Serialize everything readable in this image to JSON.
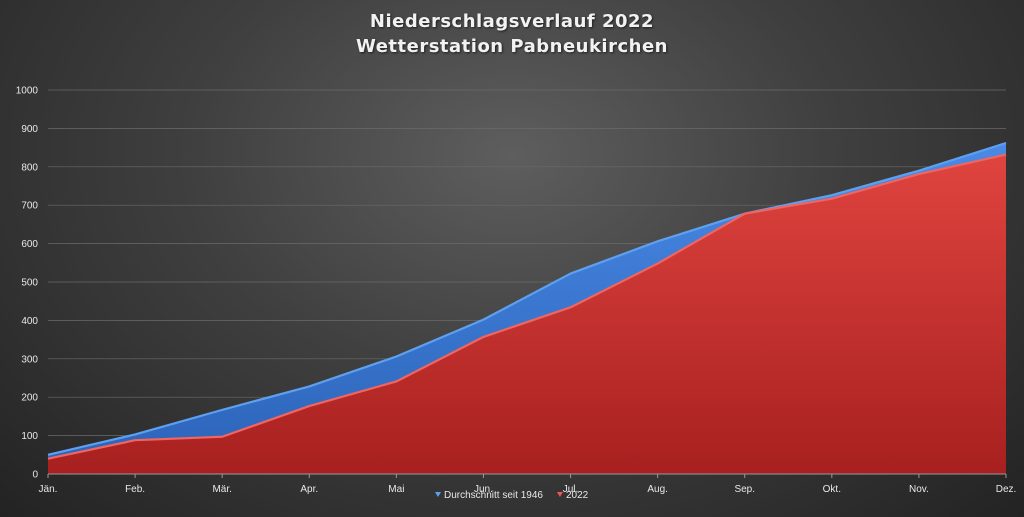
{
  "chart_data": {
    "type": "area",
    "title": "Niederschlagsverlauf 2022",
    "subtitle": "Wetterstation Pabneukirchen",
    "categories": [
      "Jän.",
      "Feb.",
      "Mär.",
      "Apr.",
      "Mai",
      "Jun.",
      "Jul.",
      "Aug.",
      "Sep.",
      "Okt.",
      "Nov.",
      "Dez."
    ],
    "series": [
      {
        "name": "Durchschnitt seit 1946",
        "color": "#3f7fd8",
        "values": [
          50,
          103,
          167,
          228,
          306,
          402,
          522,
          606,
          678,
          726,
          790,
          862
        ]
      },
      {
        "name": "2022",
        "color": "#d93b37",
        "values": [
          40,
          88,
          97,
          177,
          241,
          357,
          434,
          548,
          678,
          717,
          781,
          832
        ]
      }
    ],
    "ylim": [
      0,
      1000
    ],
    "yticks": [
      "0",
      "100",
      "200",
      "300",
      "400",
      "500",
      "600",
      "700",
      "800",
      "900",
      "1000"
    ],
    "grid": true,
    "legend_position": "bottom"
  }
}
